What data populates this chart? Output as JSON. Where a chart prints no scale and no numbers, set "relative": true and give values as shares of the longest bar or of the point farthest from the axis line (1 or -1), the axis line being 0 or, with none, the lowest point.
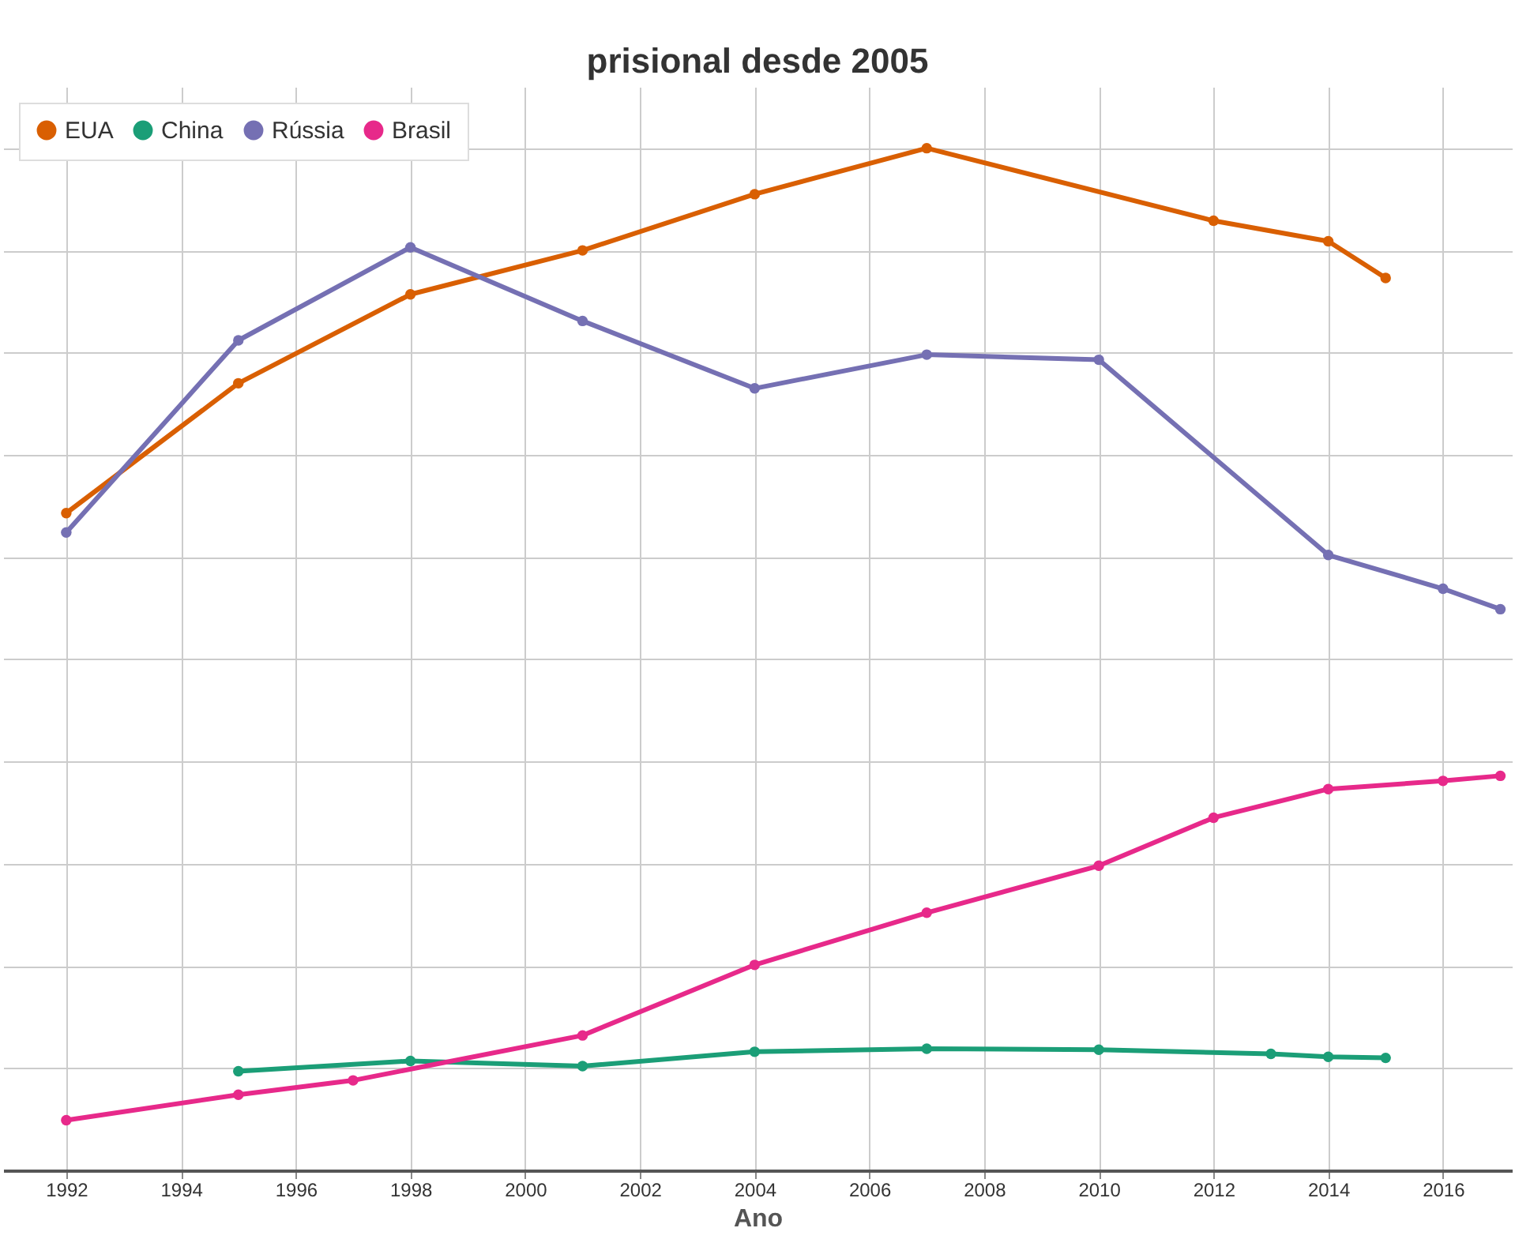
{
  "chart_data": {
    "type": "line",
    "title": "prisional desde 2005",
    "xlabel": "Ano",
    "relative": true,
    "xlim": [
      1990.9,
      2017.2
    ],
    "xticks": [
      1992,
      1994,
      1996,
      1998,
      2000,
      2002,
      2004,
      2006,
      2008,
      2010,
      2012,
      2014,
      2016
    ],
    "grid": true,
    "legend": "top left",
    "marker": "circle",
    "line_style": "solid",
    "series": [
      {
        "name": "EUA",
        "color": "#d95f02",
        "x": [
          1992,
          1995,
          1998,
          2001,
          2004,
          2007,
          2012,
          2014,
          2015
        ],
        "values": [
          0.643,
          0.77,
          0.857,
          0.9,
          0.955,
          1,
          0.929,
          0.909,
          0.873
        ]
      },
      {
        "name": "China",
        "color": "#1b9e77",
        "x": [
          1995,
          1998,
          2001,
          2004,
          2007,
          2010,
          2013,
          2014,
          2015
        ],
        "values": [
          0.097,
          0.107,
          0.102,
          0.116,
          0.119,
          0.118,
          0.114,
          0.111,
          0.11
        ]
      },
      {
        "name": "Rússia",
        "color": "#7570b3",
        "x": [
          1992,
          1995,
          1998,
          2001,
          2004,
          2007,
          2010,
          2014,
          2016,
          2017
        ],
        "values": [
          0.624,
          0.812,
          0.903,
          0.831,
          0.765,
          0.798,
          0.793,
          0.602,
          0.569,
          0.549
        ]
      },
      {
        "name": "Brasil",
        "color": "#e7298a",
        "x": [
          1992,
          1995,
          1997,
          2001,
          2004,
          2007,
          2010,
          2012,
          2014,
          2016,
          2017
        ],
        "values": [
          0.049,
          0.074,
          0.088,
          0.132,
          0.201,
          0.252,
          0.298,
          0.345,
          0.373,
          0.381,
          0.386
        ]
      }
    ]
  }
}
